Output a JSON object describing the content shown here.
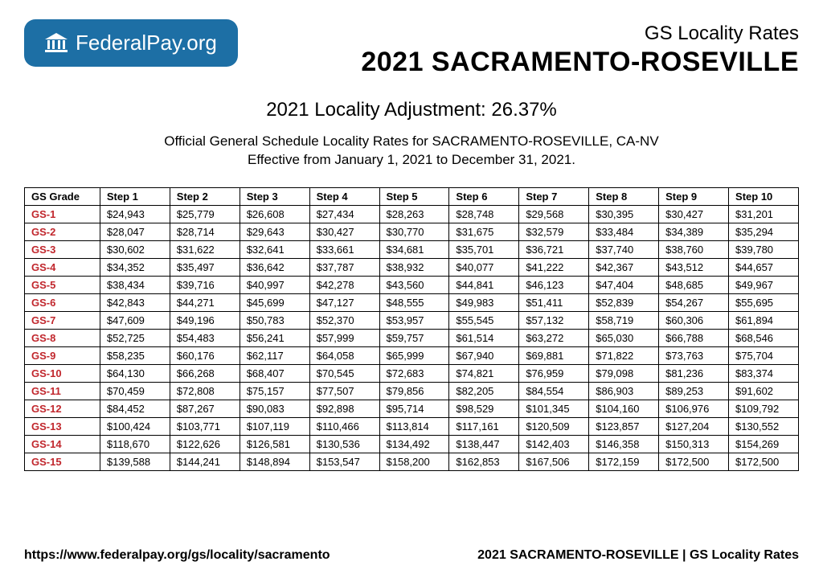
{
  "logo": {
    "text": "FederalPay.org"
  },
  "header": {
    "subtitle": "GS Locality Rates",
    "title": "2021 SACRAMENTO-ROSEVILLE"
  },
  "adjustment_line": "2021 Locality Adjustment: 26.37%",
  "description_line1": "Official General Schedule Locality Rates for SACRAMENTO-ROSEVILLE, CA-NV",
  "description_line2": "Effective from January 1, 2021 to December 31, 2021.",
  "table": {
    "grade_header": "GS Grade",
    "columns": [
      "Step 1",
      "Step 2",
      "Step 3",
      "Step 4",
      "Step 5",
      "Step 6",
      "Step 7",
      "Step 8",
      "Step 9",
      "Step 10"
    ],
    "grade_color": "#c1272d",
    "rows": [
      {
        "grade": "GS-1",
        "cells": [
          "$24,943",
          "$25,779",
          "$26,608",
          "$27,434",
          "$28,263",
          "$28,748",
          "$29,568",
          "$30,395",
          "$30,427",
          "$31,201"
        ]
      },
      {
        "grade": "GS-2",
        "cells": [
          "$28,047",
          "$28,714",
          "$29,643",
          "$30,427",
          "$30,770",
          "$31,675",
          "$32,579",
          "$33,484",
          "$34,389",
          "$35,294"
        ]
      },
      {
        "grade": "GS-3",
        "cells": [
          "$30,602",
          "$31,622",
          "$32,641",
          "$33,661",
          "$34,681",
          "$35,701",
          "$36,721",
          "$37,740",
          "$38,760",
          "$39,780"
        ]
      },
      {
        "grade": "GS-4",
        "cells": [
          "$34,352",
          "$35,497",
          "$36,642",
          "$37,787",
          "$38,932",
          "$40,077",
          "$41,222",
          "$42,367",
          "$43,512",
          "$44,657"
        ]
      },
      {
        "grade": "GS-5",
        "cells": [
          "$38,434",
          "$39,716",
          "$40,997",
          "$42,278",
          "$43,560",
          "$44,841",
          "$46,123",
          "$47,404",
          "$48,685",
          "$49,967"
        ]
      },
      {
        "grade": "GS-6",
        "cells": [
          "$42,843",
          "$44,271",
          "$45,699",
          "$47,127",
          "$48,555",
          "$49,983",
          "$51,411",
          "$52,839",
          "$54,267",
          "$55,695"
        ]
      },
      {
        "grade": "GS-7",
        "cells": [
          "$47,609",
          "$49,196",
          "$50,783",
          "$52,370",
          "$53,957",
          "$55,545",
          "$57,132",
          "$58,719",
          "$60,306",
          "$61,894"
        ]
      },
      {
        "grade": "GS-8",
        "cells": [
          "$52,725",
          "$54,483",
          "$56,241",
          "$57,999",
          "$59,757",
          "$61,514",
          "$63,272",
          "$65,030",
          "$66,788",
          "$68,546"
        ]
      },
      {
        "grade": "GS-9",
        "cells": [
          "$58,235",
          "$60,176",
          "$62,117",
          "$64,058",
          "$65,999",
          "$67,940",
          "$69,881",
          "$71,822",
          "$73,763",
          "$75,704"
        ]
      },
      {
        "grade": "GS-10",
        "cells": [
          "$64,130",
          "$66,268",
          "$68,407",
          "$70,545",
          "$72,683",
          "$74,821",
          "$76,959",
          "$79,098",
          "$81,236",
          "$83,374"
        ]
      },
      {
        "grade": "GS-11",
        "cells": [
          "$70,459",
          "$72,808",
          "$75,157",
          "$77,507",
          "$79,856",
          "$82,205",
          "$84,554",
          "$86,903",
          "$89,253",
          "$91,602"
        ]
      },
      {
        "grade": "GS-12",
        "cells": [
          "$84,452",
          "$87,267",
          "$90,083",
          "$92,898",
          "$95,714",
          "$98,529",
          "$101,345",
          "$104,160",
          "$106,976",
          "$109,792"
        ]
      },
      {
        "grade": "GS-13",
        "cells": [
          "$100,424",
          "$103,771",
          "$107,119",
          "$110,466",
          "$113,814",
          "$117,161",
          "$120,509",
          "$123,857",
          "$127,204",
          "$130,552"
        ]
      },
      {
        "grade": "GS-14",
        "cells": [
          "$118,670",
          "$122,626",
          "$126,581",
          "$130,536",
          "$134,492",
          "$138,447",
          "$142,403",
          "$146,358",
          "$150,313",
          "$154,269"
        ]
      },
      {
        "grade": "GS-15",
        "cells": [
          "$139,588",
          "$144,241",
          "$148,894",
          "$153,547",
          "$158,200",
          "$162,853",
          "$167,506",
          "$172,159",
          "$172,500",
          "$172,500"
        ]
      }
    ]
  },
  "footer": {
    "url": "https://www.federalpay.org/gs/locality/sacramento",
    "right": "2021 SACRAMENTO-ROSEVILLE | GS Locality Rates"
  }
}
